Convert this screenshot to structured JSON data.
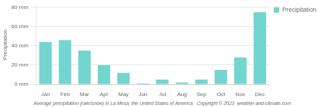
{
  "chart_data": {
    "type": "bar",
    "categories": [
      "Jan",
      "Feb",
      "Mar",
      "Apr",
      "May",
      "Jun",
      "Jul",
      "Aug",
      "Sep",
      "Oct",
      "Nov",
      "Dec"
    ],
    "series": [
      {
        "name": "Precipitation",
        "color": "#72D5CF",
        "values": [
          44,
          46,
          35,
          20,
          12,
          1,
          5,
          2,
          5,
          15,
          28,
          75
        ]
      }
    ],
    "y_label": "Precipitation",
    "ylim": [
      0,
      82
    ],
    "yticks": [
      {
        "value": 0,
        "label": "0 mm"
      },
      {
        "value": 20,
        "label": "20 mm"
      },
      {
        "value": 40,
        "label": "40 mm"
      },
      {
        "value": 60,
        "label": "60 mm"
      },
      {
        "value": 80,
        "label": "80 mm"
      }
    ],
    "grid": true,
    "legend": "right",
    "caption": "Average precipitation (rain/snow) in La Mesa, the United States of America   Copyright © 2023  weather-and-climate.com"
  }
}
